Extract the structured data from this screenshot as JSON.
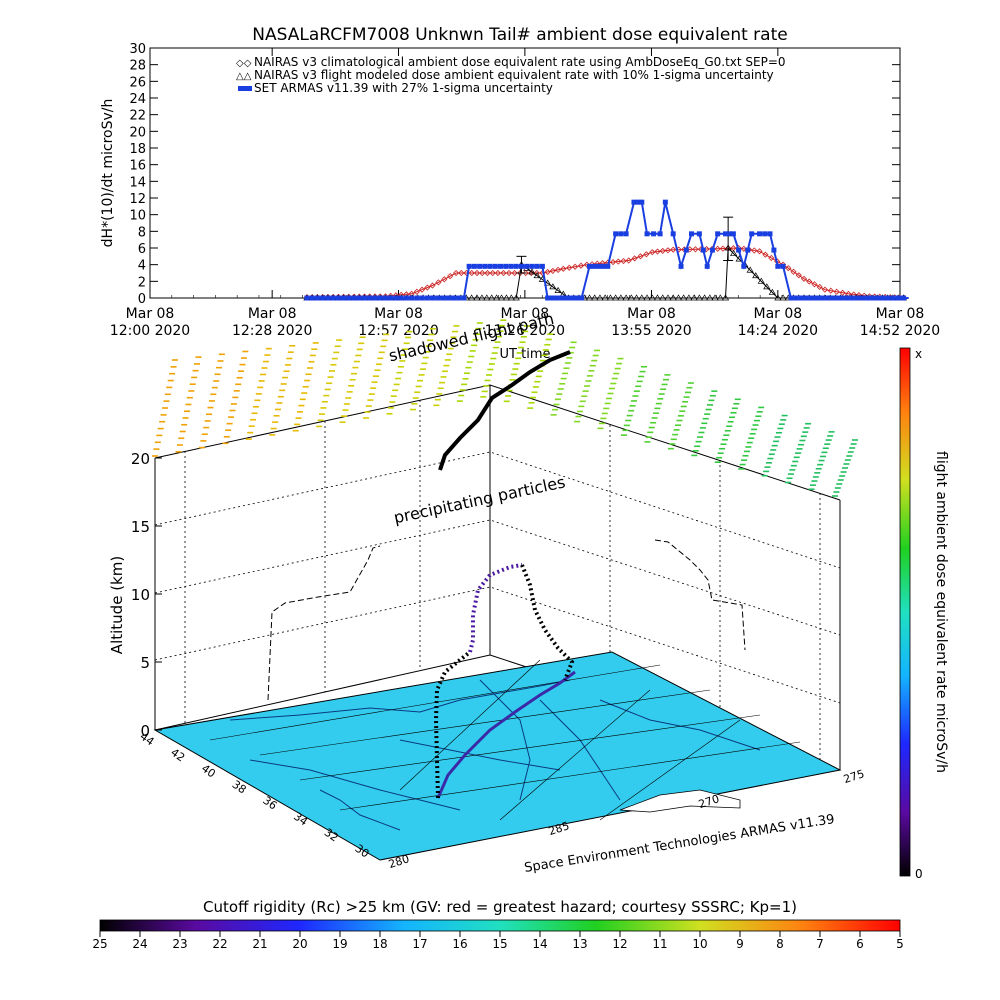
{
  "colors": {
    "nairas_climo": "#cc2222",
    "nairas_flight": "#000000",
    "armas": "#1a3fe0",
    "map_surface": "#33ccee",
    "background": "#ffffff"
  },
  "chart_data": [
    {
      "type": "line",
      "title": "NASALaRCFM7008  Unknwn Tail#  ambient dose equivalent rate",
      "ylabel": "dH*(10)/dt microSv/h",
      "xlabel": "UT time",
      "ylim": [
        0,
        30
      ],
      "yticks": [
        "0",
        "2",
        "4",
        "6",
        "8",
        "10",
        "12",
        "14",
        "16",
        "18",
        "20",
        "22",
        "24",
        "26",
        "28",
        "30"
      ],
      "xticks": [
        {
          "hour": 12.0,
          "line1": "Mar 08",
          "line2": "12:00 2020"
        },
        {
          "hour": 12.467,
          "line1": "Mar 08",
          "line2": "12:28 2020"
        },
        {
          "hour": 12.95,
          "line1": "Mar 08",
          "line2": "12:57 2020"
        },
        {
          "hour": 13.433,
          "line1": "Mar 08",
          "line2": "13:26 2020"
        },
        {
          "hour": 13.917,
          "line1": "Mar 08",
          "line2": "13:55 2020"
        },
        {
          "hour": 14.4,
          "line1": "Mar 08",
          "line2": "14:24 2020"
        },
        {
          "hour": 14.867,
          "line1": "Mar 08",
          "line2": "14:52 2020"
        }
      ],
      "legend": [
        {
          "key": "nairas_climo",
          "label": "NAIRAS v3 climatological ambient dose equivalent rate using AmbDoseEq_G0.txt SEP=0"
        },
        {
          "key": "nairas_flight",
          "label": "NAIRAS v3 flight modeled dose ambient equivalent rate with 10% 1-sigma uncertainty"
        },
        {
          "key": "armas",
          "label": "SET ARMAS v11.39 with 27% 1-sigma uncertainty"
        }
      ],
      "legend_position": "top",
      "series": [
        {
          "key": "nairas_climo",
          "marker": "diamond",
          "x": [
            12.6,
            12.9,
            13.0,
            13.08,
            13.17,
            13.33,
            13.5,
            13.58,
            13.67,
            13.83,
            13.92,
            14.0,
            14.17,
            14.25,
            14.33,
            14.42,
            14.5,
            14.58,
            14.67,
            14.75,
            14.83,
            14.9
          ],
          "y": [
            0.1,
            0.2,
            0.5,
            1.5,
            3.0,
            3.0,
            3.0,
            3.5,
            4.0,
            4.5,
            5.5,
            5.8,
            5.9,
            6.0,
            5.6,
            4.0,
            2.3,
            1.0,
            0.5,
            0.2,
            0.1,
            0.0
          ]
        },
        {
          "key": "nairas_flight",
          "marker": "triangle",
          "x": [
            12.6,
            12.9,
            13.25,
            13.4,
            13.42,
            13.6,
            13.7,
            14.2,
            14.21,
            14.4,
            14.9
          ],
          "y": [
            0.0,
            0.0,
            0.0,
            0.0,
            4.0,
            0.0,
            0.0,
            0.0,
            6.0,
            0.0,
            0.0
          ],
          "error_bars": [
            {
              "x": 13.42,
              "low": 3.0,
              "high": 5.0
            },
            {
              "x": 14.21,
              "low": 4.5,
              "high": 9.7
            }
          ]
        },
        {
          "key": "armas",
          "marker": "square",
          "x": [
            12.6,
            13.2,
            13.22,
            13.4,
            13.5,
            13.52,
            13.65,
            13.68,
            13.75,
            13.78,
            13.82,
            13.85,
            13.88,
            13.9,
            13.95,
            13.97,
            14.0,
            14.03,
            14.07,
            14.1,
            14.13,
            14.17,
            14.2,
            14.23,
            14.27,
            14.3,
            14.33,
            14.37,
            14.4,
            14.42,
            14.45,
            14.9
          ],
          "y": [
            0.0,
            0.0,
            3.8,
            3.8,
            3.8,
            0.0,
            0.0,
            3.8,
            3.8,
            7.7,
            7.7,
            11.5,
            11.5,
            7.7,
            7.7,
            11.5,
            7.7,
            3.8,
            7.7,
            7.7,
            3.8,
            7.7,
            7.7,
            7.7,
            3.8,
            7.7,
            7.7,
            7.7,
            3.8,
            3.8,
            0.0,
            0.0
          ]
        }
      ]
    },
    {
      "type": "scatter",
      "title": "",
      "ylabel": "Altitude (km)",
      "zticks": [
        "0",
        "5",
        "10",
        "15",
        "20"
      ],
      "lat_ticks": [
        "44",
        "42",
        "40",
        "38",
        "36",
        "34",
        "32",
        "30"
      ],
      "lon_ticks_left": [
        "280",
        "285"
      ],
      "lon_ticks_right": [
        "270",
        "275"
      ],
      "annotations": [
        "shadowed flight path",
        "precipitating particles"
      ],
      "caption": "Space Environment Technologies ARMAS v11.39",
      "colorbar": {
        "label": "flight ambient dose equivalent rate microSv/h",
        "min_label": "0",
        "max_label": "x"
      }
    },
    {
      "type": "heatmap",
      "title": "Cutoff rigidity (Rc) >25 km (GV: red = greatest hazard; courtesy SSSRC; Kp=1)",
      "ticks": [
        "25",
        "24",
        "23",
        "22",
        "21",
        "20",
        "19",
        "18",
        "17",
        "16",
        "15",
        "14",
        "13",
        "12",
        "11",
        "10",
        "9",
        "8",
        "7",
        "6",
        "5"
      ]
    }
  ]
}
